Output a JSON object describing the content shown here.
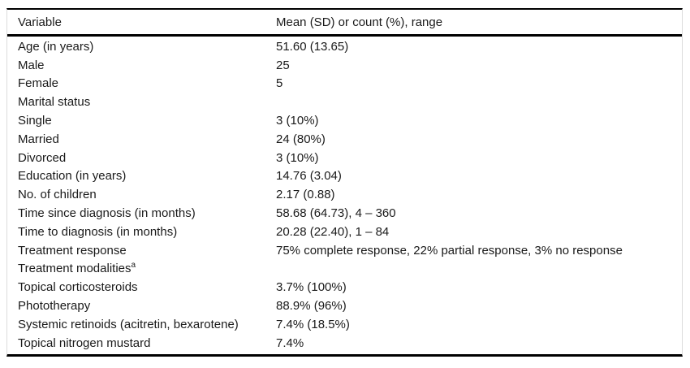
{
  "table": {
    "columns": [
      "Variable",
      "Mean (SD) or count (%), range"
    ],
    "rows": [
      {
        "variable": "Age (in years)",
        "value": "51.60 (13.65)"
      },
      {
        "variable": "Male",
        "value": "25"
      },
      {
        "variable": "Female",
        "value": "5"
      },
      {
        "variable": "Marital status",
        "value": ""
      },
      {
        "variable": "Single",
        "value": "3 (10%)"
      },
      {
        "variable": "Married",
        "value": "24 (80%)"
      },
      {
        "variable": "Divorced",
        "value": "3 (10%)"
      },
      {
        "variable": "Education (in years)",
        "value": "14.76 (3.04)"
      },
      {
        "variable": "No. of children",
        "value": "2.17 (0.88)"
      },
      {
        "variable": "Time since diagnosis (in months)",
        "value": "58.68 (64.73), 4 – 360"
      },
      {
        "variable": "Time to diagnosis (in months)",
        "value": "20.28 (22.40), 1 – 84"
      },
      {
        "variable": "Treatment response",
        "value": "75% complete response, 22% partial response, 3% no response"
      },
      {
        "variable": "Treatment modalities",
        "superscript": "a",
        "value": ""
      },
      {
        "variable": "Topical corticosteroids",
        "value": "3.7% (100%)"
      },
      {
        "variable": "Phototherapy",
        "value": "88.9% (96%)"
      },
      {
        "variable": "Systemic retinoids (acitretin, bexarotene)",
        "value": "7.4% (18.5%)"
      },
      {
        "variable": "Topical nitrogen mustard",
        "value": "7.4%"
      }
    ],
    "colors": {
      "rule": "#000000",
      "outer_border": "#dcdcdc",
      "text": "#1a1a1a",
      "background": "#ffffff"
    }
  }
}
